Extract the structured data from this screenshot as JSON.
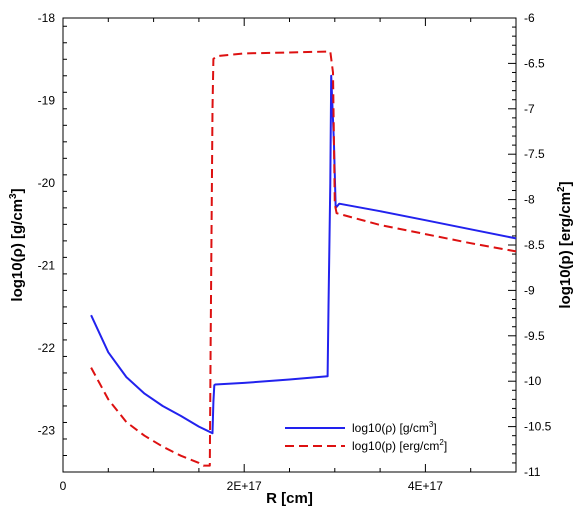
{
  "chart_data": {
    "type": "line",
    "x_axis": {
      "label": "R [cm]",
      "range": [
        0,
        5e+17
      ],
      "ticks": [
        {
          "value": 0,
          "label": "0"
        },
        {
          "value": 2e+17,
          "label": "2E+17"
        },
        {
          "value": 4e+17,
          "label": "4E+17"
        }
      ]
    },
    "y_axis_left": {
      "label_parts": [
        "log10(ρ) [g/cm",
        "3",
        "]"
      ],
      "range": [
        -23.5,
        -18
      ],
      "ticks": [
        {
          "value": -18,
          "label": "-18"
        },
        {
          "value": -19,
          "label": "-19"
        },
        {
          "value": -20,
          "label": "-20"
        },
        {
          "value": -21,
          "label": "-21"
        },
        {
          "value": -22,
          "label": "-22"
        },
        {
          "value": -23,
          "label": "-23"
        }
      ]
    },
    "y_axis_right": {
      "label_parts": [
        "log10(p) [erg/cm",
        "2",
        "]"
      ],
      "range": [
        -11,
        -6
      ],
      "ticks": [
        {
          "value": -6,
          "label": "-6"
        },
        {
          "value": -6.5,
          "label": "-6.5"
        },
        {
          "value": -7,
          "label": "-7"
        },
        {
          "value": -7.5,
          "label": "-7.5"
        },
        {
          "value": -8,
          "label": "-8"
        },
        {
          "value": -8.5,
          "label": "-8.5"
        },
        {
          "value": -9,
          "label": "-9"
        },
        {
          "value": -9.5,
          "label": "-9.5"
        },
        {
          "value": -10,
          "label": "-10"
        },
        {
          "value": -10.5,
          "label": "-10.5"
        },
        {
          "value": -11,
          "label": "-11"
        }
      ]
    },
    "series": [
      {
        "name_parts": [
          "log10(ρ) [g/cm",
          "3",
          "]"
        ],
        "axis": "left",
        "color": "#2222ee",
        "dash": "solid",
        "x": [
          3.1e+16,
          5e+16,
          7e+16,
          9e+16,
          1.1e+17,
          1.3e+17,
          1.5e+17,
          1.65e+17,
          1.66e+17,
          1.67e+17,
          1.68e+17,
          2e+17,
          2.5e+17,
          2.92e+17,
          2.93e+17,
          2.95e+17,
          2.96e+17,
          2.99e+17,
          3.01e+17,
          3.05e+17,
          3.5e+17,
          4e+17,
          4.5e+17,
          5e+17
        ],
        "y": [
          -21.6,
          -22.05,
          -22.35,
          -22.55,
          -22.7,
          -22.82,
          -22.95,
          -23.03,
          -22.65,
          -22.45,
          -22.44,
          -22.42,
          -22.38,
          -22.34,
          -21.5,
          -20.0,
          -18.7,
          -19.5,
          -20.3,
          -20.25,
          -20.34,
          -20.45,
          -20.56,
          -20.67
        ]
      },
      {
        "name_parts": [
          "log10(p) [erg/cm",
          "2",
          "]"
        ],
        "axis": "right",
        "color": "#dd1111",
        "dash": "dashed",
        "x": [
          3.1e+16,
          5e+16,
          7e+16,
          9e+16,
          1.1e+17,
          1.3e+17,
          1.5e+17,
          1.55e+17,
          1.62e+17,
          1.63e+17,
          1.65e+17,
          1.66e+17,
          1.7e+17,
          2e+17,
          2.5e+17,
          2.9e+17,
          2.95e+17,
          2.98e+17,
          3e+17,
          3.02e+17,
          3.5e+17,
          4e+17,
          4.5e+17,
          5e+17
        ],
        "y": [
          -9.85,
          -10.2,
          -10.45,
          -10.6,
          -10.72,
          -10.82,
          -10.9,
          -10.93,
          -10.93,
          -9.5,
          -7.0,
          -6.45,
          -6.42,
          -6.39,
          -6.38,
          -6.37,
          -6.37,
          -6.6,
          -8.05,
          -8.15,
          -8.28,
          -8.38,
          -8.48,
          -8.57
        ]
      }
    ],
    "legend": {
      "position": "bottom-right"
    }
  }
}
